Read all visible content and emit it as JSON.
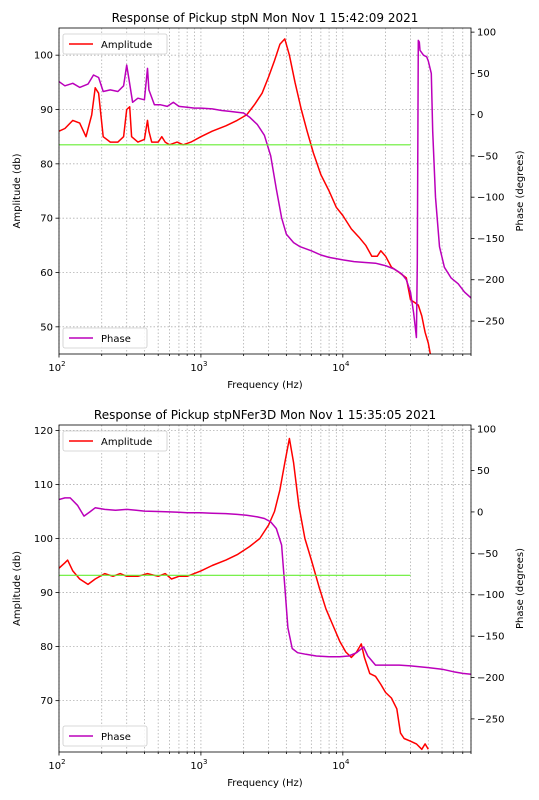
{
  "chart_data": [
    {
      "type": "line",
      "title": "Response of Pickup stpN Mon Nov  1 15:42:09 2021",
      "xlabel": "Frequency (Hz)",
      "ylabel": "Amplitude (db)",
      "y2label": "Phase (degrees)",
      "xscale": "log",
      "xlim": [
        100,
        80000
      ],
      "ylim": [
        45,
        105
      ],
      "y2lim": [
        -290,
        105
      ],
      "x_ticks": [
        100,
        1000,
        10000
      ],
      "x_tick_labels": [
        [
          "10",
          "2"
        ],
        [
          "10",
          "3"
        ],
        [
          "10",
          "4"
        ]
      ],
      "y_ticks": [
        50,
        60,
        70,
        80,
        90,
        100
      ],
      "y_tick_labels": [
        "50",
        "60",
        "70",
        "80",
        "90",
        "100"
      ],
      "y2_ticks": [
        -250,
        -200,
        -150,
        -100,
        -50,
        0,
        50,
        100
      ],
      "y2_tick_labels": [
        "−250",
        "−200",
        "−150",
        "−100",
        "−50",
        "0",
        "50",
        "100"
      ],
      "grid": true,
      "legend_amplitude_position": "upper-left",
      "legend_phase_position": "lower-left",
      "series": [
        {
          "name": "Amplitude",
          "axis": "left",
          "color": "#ff0000",
          "points": [
            [
              100,
              86
            ],
            [
              110,
              86.5
            ],
            [
              125,
              88
            ],
            [
              140,
              87.5
            ],
            [
              155,
              85
            ],
            [
              170,
              89
            ],
            [
              180,
              94
            ],
            [
              190,
              93
            ],
            [
              205,
              85
            ],
            [
              230,
              84
            ],
            [
              260,
              84
            ],
            [
              285,
              85
            ],
            [
              300,
              90
            ],
            [
              315,
              90.5
            ],
            [
              325,
              85
            ],
            [
              360,
              84
            ],
            [
              400,
              84.5
            ],
            [
              420,
              88
            ],
            [
              430,
              86
            ],
            [
              450,
              84
            ],
            [
              500,
              84
            ],
            [
              530,
              85
            ],
            [
              560,
              84
            ],
            [
              600,
              83.5
            ],
            [
              680,
              84
            ],
            [
              750,
              83.5
            ],
            [
              850,
              84
            ],
            [
              1000,
              85
            ],
            [
              1200,
              86
            ],
            [
              1500,
              87
            ],
            [
              1800,
              88
            ],
            [
              2100,
              89
            ],
            [
              2400,
              91
            ],
            [
              2700,
              93
            ],
            [
              3000,
              96
            ],
            [
              3300,
              99
            ],
            [
              3600,
              102
            ],
            [
              3900,
              103
            ],
            [
              4200,
              100
            ],
            [
              4600,
              95
            ],
            [
              5100,
              90
            ],
            [
              5600,
              86
            ],
            [
              6200,
              82
            ],
            [
              7000,
              78
            ],
            [
              8000,
              75
            ],
            [
              9000,
              72
            ],
            [
              10000,
              70.5
            ],
            [
              11500,
              68
            ],
            [
              13000,
              66.5
            ],
            [
              14500,
              65
            ],
            [
              16000,
              63
            ],
            [
              17500,
              63
            ],
            [
              18500,
              64
            ],
            [
              20000,
              63
            ],
            [
              22000,
              61
            ],
            [
              25000,
              60
            ],
            [
              28000,
              59
            ],
            [
              30000,
              55
            ],
            [
              32000,
              54.5
            ],
            [
              34000,
              54
            ],
            [
              36000,
              52
            ],
            [
              38000,
              49
            ],
            [
              40000,
              47
            ],
            [
              42000,
              44
            ]
          ]
        },
        {
          "name": "Phase",
          "axis": "right",
          "color": "#bb00bb",
          "points": [
            [
              100,
              40
            ],
            [
              110,
              35
            ],
            [
              125,
              38
            ],
            [
              140,
              33
            ],
            [
              160,
              37
            ],
            [
              175,
              48
            ],
            [
              190,
              45
            ],
            [
              205,
              28
            ],
            [
              230,
              30
            ],
            [
              260,
              28
            ],
            [
              285,
              35
            ],
            [
              300,
              60
            ],
            [
              310,
              45
            ],
            [
              330,
              15
            ],
            [
              360,
              20
            ],
            [
              400,
              18
            ],
            [
              420,
              56
            ],
            [
              430,
              30
            ],
            [
              470,
              12
            ],
            [
              520,
              12
            ],
            [
              580,
              10
            ],
            [
              640,
              15
            ],
            [
              700,
              10
            ],
            [
              800,
              9
            ],
            [
              900,
              8
            ],
            [
              1000,
              8
            ],
            [
              1200,
              7
            ],
            [
              1400,
              5
            ],
            [
              1600,
              4
            ],
            [
              1800,
              3
            ],
            [
              2000,
              2
            ],
            [
              2200,
              -3
            ],
            [
              2500,
              -12
            ],
            [
              2800,
              -25
            ],
            [
              3100,
              -50
            ],
            [
              3400,
              -90
            ],
            [
              3700,
              -125
            ],
            [
              4000,
              -145
            ],
            [
              4500,
              -155
            ],
            [
              5000,
              -160
            ],
            [
              6000,
              -165
            ],
            [
              7000,
              -170
            ],
            [
              8000,
              -173
            ],
            [
              10000,
              -176
            ],
            [
              12000,
              -178
            ],
            [
              14000,
              -179
            ],
            [
              17000,
              -180
            ],
            [
              20000,
              -183
            ],
            [
              23000,
              -187
            ],
            [
              26000,
              -193
            ],
            [
              28000,
              -200
            ],
            [
              30000,
              -215
            ],
            [
              31500,
              -240
            ],
            [
              32500,
              -260
            ],
            [
              33000,
              -270
            ],
            [
              33500,
              -180
            ],
            [
              34000,
              90
            ],
            [
              34600,
              88
            ],
            [
              35000,
              78
            ],
            [
              37000,
              72
            ],
            [
              39000,
              70
            ],
            [
              40000,
              65
            ],
            [
              42000,
              50
            ],
            [
              43000,
              -20
            ],
            [
              45000,
              -100
            ],
            [
              48000,
              -160
            ],
            [
              52000,
              -185
            ],
            [
              58000,
              -198
            ],
            [
              65000,
              -205
            ],
            [
              72000,
              -215
            ],
            [
              80000,
              -222
            ]
          ]
        },
        {
          "name": "",
          "axis": "left",
          "color": "#66ee33",
          "points": [
            [
              100,
              83.5
            ],
            [
              30000,
              83.5
            ]
          ]
        }
      ]
    },
    {
      "type": "line",
      "title": "Response of Pickup stpNFer3D Mon Nov  1 15:35:05 2021",
      "xlabel": "Frequency (Hz)",
      "ylabel": "Amplitude (db)",
      "y2label": "Phase (degrees)",
      "xscale": "log",
      "xlim": [
        100,
        80000
      ],
      "ylim": [
        60.5,
        121
      ],
      "y2lim": [
        -290,
        105
      ],
      "x_ticks": [
        100,
        1000,
        10000
      ],
      "x_tick_labels": [
        [
          "10",
          "2"
        ],
        [
          "10",
          "3"
        ],
        [
          "10",
          "4"
        ]
      ],
      "y_ticks": [
        70,
        80,
        90,
        100,
        110,
        120
      ],
      "y_tick_labels": [
        "70",
        "80",
        "90",
        "100",
        "110",
        "120"
      ],
      "y2_ticks": [
        -250,
        -200,
        -150,
        -100,
        -50,
        0,
        50,
        100
      ],
      "y2_tick_labels": [
        "−250",
        "−200",
        "−150",
        "−100",
        "−50",
        "0",
        "50",
        "100"
      ],
      "grid": true,
      "legend_amplitude_position": "upper-left",
      "legend_phase_position": "lower-left",
      "series": [
        {
          "name": "Amplitude",
          "axis": "left",
          "color": "#ff0000",
          "points": [
            [
              100,
              94.5
            ],
            [
              110,
              95.5
            ],
            [
              115,
              96
            ],
            [
              125,
              94
            ],
            [
              140,
              92.5
            ],
            [
              160,
              91.5
            ],
            [
              180,
              92.5
            ],
            [
              210,
              93.5
            ],
            [
              240,
              93
            ],
            [
              270,
              93.5
            ],
            [
              300,
              93
            ],
            [
              360,
              93
            ],
            [
              420,
              93.5
            ],
            [
              500,
              93
            ],
            [
              560,
              93.5
            ],
            [
              620,
              92.5
            ],
            [
              700,
              93
            ],
            [
              800,
              93
            ],
            [
              1000,
              94
            ],
            [
              1200,
              95
            ],
            [
              1500,
              96
            ],
            [
              1800,
              97
            ],
            [
              2200,
              98.5
            ],
            [
              2600,
              100
            ],
            [
              3000,
              102.5
            ],
            [
              3300,
              105
            ],
            [
              3600,
              109
            ],
            [
              3900,
              114
            ],
            [
              4200,
              118.5
            ],
            [
              4500,
              114
            ],
            [
              4900,
              106
            ],
            [
              5400,
              100
            ],
            [
              6000,
              96
            ],
            [
              6800,
              91
            ],
            [
              7600,
              87
            ],
            [
              8500,
              84
            ],
            [
              9500,
              81
            ],
            [
              10500,
              79
            ],
            [
              11500,
              78
            ],
            [
              12500,
              79
            ],
            [
              13500,
              80.5
            ],
            [
              14200,
              78
            ],
            [
              15500,
              75
            ],
            [
              17000,
              74.5
            ],
            [
              18500,
              73
            ],
            [
              20000,
              71.5
            ],
            [
              22000,
              70.5
            ],
            [
              24000,
              68.5
            ],
            [
              25500,
              64
            ],
            [
              27000,
              63
            ],
            [
              30000,
              62.5
            ],
            [
              33000,
              62
            ],
            [
              36000,
              61
            ],
            [
              38000,
              62
            ],
            [
              40000,
              61
            ]
          ]
        },
        {
          "name": "Phase",
          "axis": "right",
          "color": "#bb00bb",
          "points": [
            [
              100,
              15
            ],
            [
              110,
              17
            ],
            [
              120,
              17
            ],
            [
              135,
              8
            ],
            [
              150,
              -5
            ],
            [
              165,
              0
            ],
            [
              180,
              5
            ],
            [
              210,
              3
            ],
            [
              250,
              2
            ],
            [
              300,
              3
            ],
            [
              350,
              2
            ],
            [
              400,
              1
            ],
            [
              500,
              0.5
            ],
            [
              600,
              0
            ],
            [
              700,
              -0.5
            ],
            [
              800,
              -1
            ],
            [
              900,
              -1
            ],
            [
              1000,
              -1
            ],
            [
              1200,
              -1.5
            ],
            [
              1500,
              -2
            ],
            [
              1800,
              -3
            ],
            [
              2100,
              -4
            ],
            [
              2500,
              -6
            ],
            [
              2800,
              -8
            ],
            [
              3100,
              -12
            ],
            [
              3400,
              -20
            ],
            [
              3700,
              -40
            ],
            [
              3900,
              -90
            ],
            [
              4100,
              -140
            ],
            [
              4400,
              -165
            ],
            [
              4800,
              -170
            ],
            [
              5500,
              -172
            ],
            [
              6500,
              -174
            ],
            [
              8000,
              -175
            ],
            [
              9500,
              -175
            ],
            [
              11000,
              -174
            ],
            [
              12500,
              -170
            ],
            [
              14000,
              -163
            ],
            [
              15000,
              -174
            ],
            [
              17000,
              -185
            ],
            [
              20000,
              -185
            ],
            [
              25000,
              -185
            ],
            [
              30000,
              -186
            ],
            [
              40000,
              -188
            ],
            [
              50000,
              -190
            ],
            [
              60000,
              -193
            ],
            [
              70000,
              -195
            ],
            [
              80000,
              -196
            ]
          ]
        },
        {
          "name": "",
          "axis": "left",
          "color": "#66ee33",
          "points": [
            [
              100,
              93.2
            ],
            [
              30000,
              93.2
            ]
          ]
        }
      ]
    }
  ]
}
